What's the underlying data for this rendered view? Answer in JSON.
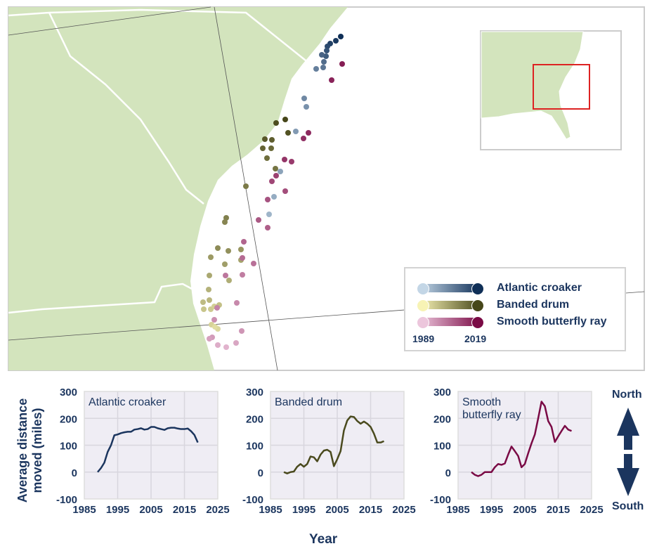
{
  "legend": {
    "items": [
      {
        "label": "Atlantic croaker",
        "color_light": "#c3d6e6",
        "color_dark": "#0f2f57"
      },
      {
        "label": "Banded drum",
        "color_light": "#f7f3b5",
        "color_dark": "#464619"
      },
      {
        "label": "Smooth butterfly ray",
        "color_light": "#ecc6dc",
        "color_dark": "#7a0a45"
      }
    ],
    "year_start": "1989",
    "year_end": "2019"
  },
  "axis": {
    "ylabel": "Average distance moved (miles)",
    "xlabel": "Year"
  },
  "direction": {
    "north": "North",
    "south": "South"
  },
  "chart_data": [
    {
      "type": "line",
      "title": "Atlantic croaker",
      "color": "#1b355e",
      "x": [
        1989,
        1990,
        1991,
        1992,
        1993,
        1994,
        1995,
        1996,
        1997,
        1998,
        1999,
        2000,
        2001,
        2002,
        2003,
        2004,
        2005,
        2006,
        2007,
        2008,
        2009,
        2010,
        2011,
        2012,
        2013,
        2014,
        2015,
        2016,
        2017,
        2018,
        2019
      ],
      "y": [
        0,
        15,
        35,
        75,
        100,
        137,
        140,
        145,
        148,
        150,
        150,
        158,
        160,
        163,
        158,
        160,
        168,
        168,
        163,
        160,
        157,
        163,
        165,
        165,
        162,
        160,
        160,
        162,
        152,
        138,
        110
      ],
      "xlim": [
        1985,
        2025
      ],
      "ylim": [
        -100,
        300
      ],
      "xticks": [
        "1985",
        "1995",
        "2005",
        "2015",
        "2025"
      ],
      "yticks": [
        "300",
        "200",
        "100",
        "0",
        "-100"
      ]
    },
    {
      "type": "line",
      "title": "Banded drum",
      "color": "#4a4a1e",
      "x": [
        1989,
        1990,
        1991,
        1992,
        1993,
        1994,
        1995,
        1996,
        1997,
        1998,
        1999,
        2000,
        2001,
        2002,
        2003,
        2004,
        2005,
        2006,
        2007,
        2008,
        2009,
        2010,
        2011,
        2012,
        2013,
        2014,
        2015,
        2016,
        2017,
        2018,
        2019
      ],
      "y": [
        0,
        -5,
        0,
        2,
        20,
        30,
        20,
        30,
        58,
        55,
        40,
        65,
        80,
        83,
        75,
        22,
        48,
        78,
        155,
        192,
        207,
        205,
        190,
        180,
        188,
        180,
        168,
        143,
        110,
        110,
        115
      ],
      "xlim": [
        1985,
        2025
      ],
      "ylim": [
        -100,
        300
      ],
      "xticks": [
        "1985",
        "1995",
        "2005",
        "2015",
        "2025"
      ],
      "yticks": [
        "300",
        "200",
        "100",
        "0",
        "-100"
      ]
    },
    {
      "type": "line",
      "title": "Smooth butterfly ray",
      "color": "#7a0a45",
      "x": [
        1989,
        1990,
        1991,
        1992,
        1993,
        1994,
        1995,
        1996,
        1997,
        1998,
        1999,
        2000,
        2001,
        2002,
        2003,
        2004,
        2005,
        2006,
        2007,
        2008,
        2009,
        2010,
        2011,
        2012,
        2013,
        2014,
        2015,
        2016,
        2017,
        2018,
        2019
      ],
      "y": [
        0,
        -10,
        -15,
        -10,
        0,
        0,
        0,
        18,
        30,
        27,
        32,
        65,
        95,
        78,
        60,
        18,
        30,
        70,
        107,
        140,
        200,
        262,
        245,
        190,
        168,
        112,
        133,
        153,
        172,
        158,
        153
      ],
      "xlim": [
        1985,
        2025
      ],
      "ylim": [
        -100,
        300
      ],
      "xticks": [
        "1985",
        "1995",
        "2005",
        "2015",
        "2025"
      ],
      "yticks": [
        "300",
        "200",
        "100",
        "0",
        "-100"
      ]
    }
  ]
}
